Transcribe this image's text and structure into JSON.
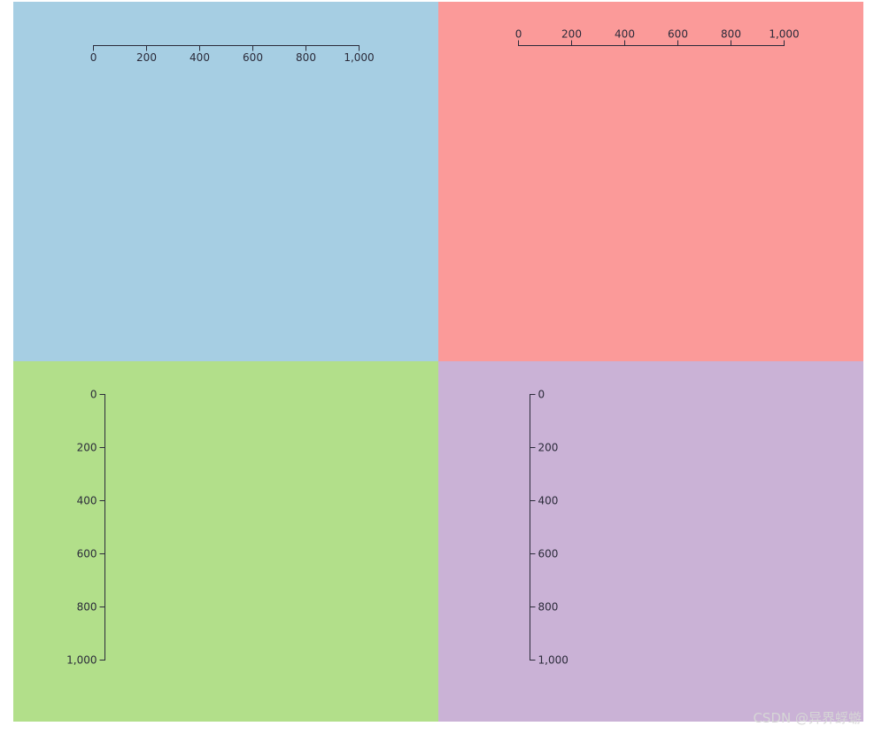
{
  "colors": {
    "panel_top_left": "#a6cee3",
    "panel_top_right": "#fb9a99",
    "panel_bottom_left": "#b2df8a",
    "panel_bottom_right": "#cab2d6",
    "axis": "#2b2b3a"
  },
  "chart_data": [
    {
      "type": "axis",
      "orientation": "bottom",
      "domain": [
        0,
        1000
      ],
      "ticks": [
        0,
        200,
        400,
        600,
        800,
        1000
      ],
      "tick_labels": [
        "0",
        "200",
        "400",
        "600",
        "800",
        "1,000"
      ]
    },
    {
      "type": "axis",
      "orientation": "top",
      "domain": [
        0,
        1000
      ],
      "ticks": [
        0,
        200,
        400,
        600,
        800,
        1000
      ],
      "tick_labels": [
        "0",
        "200",
        "400",
        "600",
        "800",
        "1,000"
      ]
    },
    {
      "type": "axis",
      "orientation": "left",
      "domain": [
        0,
        1000
      ],
      "ticks": [
        0,
        200,
        400,
        600,
        800,
        1000
      ],
      "tick_labels": [
        "0",
        "200",
        "400",
        "600",
        "800",
        "1,000"
      ]
    },
    {
      "type": "axis",
      "orientation": "right",
      "domain": [
        0,
        1000
      ],
      "ticks": [
        0,
        200,
        400,
        600,
        800,
        1000
      ],
      "tick_labels": [
        "0",
        "200",
        "400",
        "600",
        "800",
        "1,000"
      ]
    }
  ],
  "watermark": "CSDN @异界蜉蝣"
}
